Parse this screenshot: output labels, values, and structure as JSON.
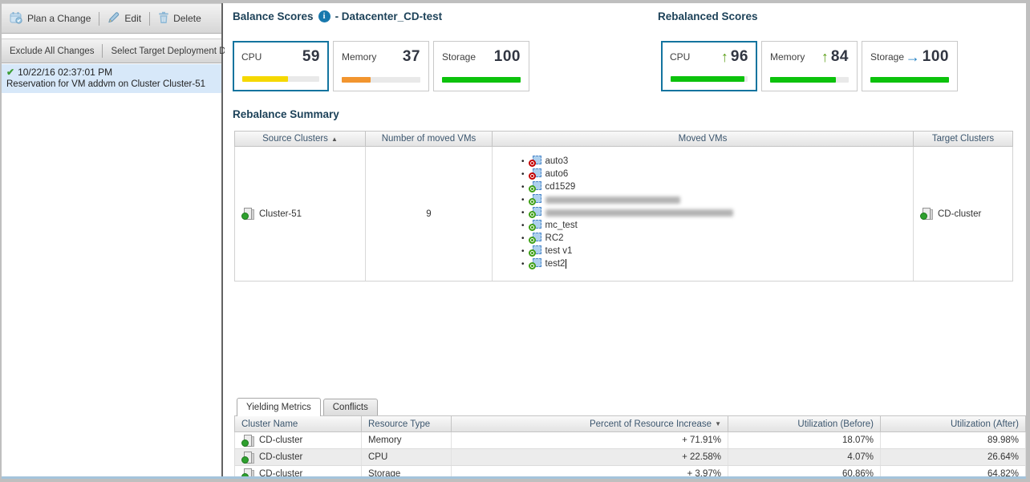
{
  "left_panel": {
    "toolbar": {
      "plan_a_change": "Plan a Change",
      "edit": "Edit",
      "delete": "Delete"
    },
    "actions": {
      "exclude_all": "Exclude All Changes",
      "select_target": "Select Target Deployment Da"
    },
    "selected_change": {
      "timestamp": "10/22/16 02:37:01 PM",
      "description": "Reservation for VM addvm on Cluster Cluster-51"
    }
  },
  "balance_scores": {
    "title": "Balance Scores",
    "info_glyph": "i",
    "datacenter_suffix": "- Datacenter_CD-test",
    "cards": [
      {
        "label": "CPU",
        "value": "59",
        "bar_percent": 59,
        "bar_color": "#f5d800",
        "selected": true
      },
      {
        "label": "Memory",
        "value": "37",
        "bar_percent": 37,
        "bar_color": "#f2952f",
        "selected": false
      },
      {
        "label": "Storage",
        "value": "100",
        "bar_percent": 100,
        "bar_color": "#0cc20c",
        "selected": false
      }
    ]
  },
  "rebalanced_scores": {
    "title": "Rebalanced Scores",
    "cards": [
      {
        "label": "CPU",
        "value": "96",
        "trend_glyph": "↑",
        "trend_color": "#5a9e16",
        "bar_percent": 96,
        "bar_color": "#0cc20c",
        "selected": true
      },
      {
        "label": "Memory",
        "value": "84",
        "trend_glyph": "↑",
        "trend_color": "#5a9e16",
        "bar_percent": 84,
        "bar_color": "#0cc20c",
        "selected": false
      },
      {
        "label": "Storage",
        "value": "100",
        "trend_glyph": "→",
        "trend_color": "#1d7ec2",
        "bar_percent": 100,
        "bar_color": "#0cc20c",
        "selected": false
      }
    ]
  },
  "rebalance_summary": {
    "title": "Rebalance Summary",
    "sort_glyph": "▲",
    "columns": [
      "Source Clusters",
      "Number of moved VMs",
      "Moved VMs",
      "Target Clusters"
    ],
    "row": {
      "source_cluster": "Cluster-51",
      "moved_vm_count": "9",
      "moved_vms": [
        {
          "name": "auto3",
          "status": "off",
          "blurred": false
        },
        {
          "name": "auto6",
          "status": "off",
          "blurred": false
        },
        {
          "name": "cd1529",
          "status": "on",
          "blurred": false
        },
        {
          "name": "",
          "status": "on",
          "blurred": true
        },
        {
          "name": "",
          "status": "on",
          "blurred": true
        },
        {
          "name": "mc_test",
          "status": "on",
          "blurred": false
        },
        {
          "name": "RC2",
          "status": "on",
          "blurred": false
        },
        {
          "name": "test v1",
          "status": "on",
          "blurred": false
        },
        {
          "name": "test2",
          "status": "on",
          "blurred": false
        }
      ],
      "target_cluster": "CD-cluster"
    }
  },
  "bottom_panel": {
    "tabs": [
      {
        "label": "Yielding Metrics",
        "active": true
      },
      {
        "label": "Conflicts",
        "active": false
      }
    ],
    "sort_glyph": "▼",
    "table": {
      "columns": [
        "Cluster Name",
        "Resource Type",
        "Percent of Resource Increase",
        "Utilization (Before)",
        "Utilization (After)"
      ],
      "rows": [
        {
          "cluster": "CD-cluster",
          "resource": "Memory",
          "increase": "+ 71.91%",
          "before": "18.07%",
          "after": "89.98%"
        },
        {
          "cluster": "CD-cluster",
          "resource": "CPU",
          "increase": "+ 22.58%",
          "before": "4.07%",
          "after": "26.64%"
        },
        {
          "cluster": "CD-cluster",
          "resource": "Storage",
          "increase": "+ 3.97%",
          "before": "60.86%",
          "after": "64.82%"
        }
      ]
    }
  }
}
